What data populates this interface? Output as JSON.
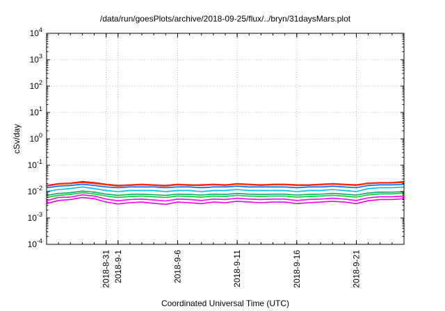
{
  "chart_data": {
    "type": "line",
    "title": "/data/run/goesPlots/archive/2018-09-25/flux/../bryn/31daysMars.plot",
    "xlabel": "Coordinated Universal Time (UTC)",
    "ylabel": "cSv/day",
    "yscale": "log",
    "ylim": [
      0.0001,
      10000
    ],
    "yticks": [
      {
        "value": 0.0001,
        "base": "10",
        "exp": "-4"
      },
      {
        "value": 0.001,
        "base": "10",
        "exp": "-3"
      },
      {
        "value": 0.01,
        "base": "10",
        "exp": "-2"
      },
      {
        "value": 0.1,
        "base": "10",
        "exp": "-1"
      },
      {
        "value": 1,
        "base": "10",
        "exp": "0"
      },
      {
        "value": 10,
        "base": "10",
        "exp": "1"
      },
      {
        "value": 100,
        "base": "10",
        "exp": "2"
      },
      {
        "value": 1000,
        "base": "10",
        "exp": "3"
      },
      {
        "value": 10000,
        "base": "10",
        "exp": "4"
      }
    ],
    "xlim": [
      "2018-08-26",
      "2018-09-25"
    ],
    "xticks": [
      {
        "date": "2018-08-31",
        "label": "2018-8-31"
      },
      {
        "date": "2018-09-01",
        "label": "2018-9-1"
      },
      {
        "date": "2018-09-06",
        "label": "2018-9-6"
      },
      {
        "date": "2018-09-11",
        "label": "2018-9-11"
      },
      {
        "date": "2018-09-16",
        "label": "2018-9-16"
      },
      {
        "date": "2018-09-21",
        "label": "2018-9-21"
      }
    ],
    "grid": true,
    "legend": "none",
    "x_dates": [
      "2018-08-26",
      "2018-08-27",
      "2018-08-28",
      "2018-08-29",
      "2018-08-30",
      "2018-08-31",
      "2018-09-01",
      "2018-09-02",
      "2018-09-03",
      "2018-09-04",
      "2018-09-05",
      "2018-09-06",
      "2018-09-07",
      "2018-09-08",
      "2018-09-09",
      "2018-09-10",
      "2018-09-11",
      "2018-09-12",
      "2018-09-13",
      "2018-09-14",
      "2018-09-15",
      "2018-09-16",
      "2018-09-17",
      "2018-09-18",
      "2018-09-19",
      "2018-09-20",
      "2018-09-21",
      "2018-09-22",
      "2018-09-23",
      "2018-09-24",
      "2018-09-25"
    ],
    "series": [
      {
        "color": "#ff0000",
        "values": [
          0.017,
          0.02,
          0.021,
          0.024,
          0.022,
          0.019,
          0.017,
          0.018,
          0.019,
          0.018,
          0.017,
          0.019,
          0.018,
          0.018,
          0.019,
          0.018,
          0.02,
          0.019,
          0.018,
          0.019,
          0.019,
          0.018,
          0.018,
          0.019,
          0.02,
          0.019,
          0.018,
          0.021,
          0.022,
          0.022,
          0.024
        ]
      },
      {
        "color": "#ff4400",
        "values": [
          0.016,
          0.019,
          0.02,
          0.022,
          0.02,
          0.018,
          0.016,
          0.017,
          0.018,
          0.017,
          0.016,
          0.018,
          0.017,
          0.017,
          0.018,
          0.017,
          0.019,
          0.018,
          0.017,
          0.018,
          0.018,
          0.017,
          0.017,
          0.018,
          0.019,
          0.018,
          0.017,
          0.02,
          0.021,
          0.021,
          0.022
        ]
      },
      {
        "color": "#0066ff",
        "values": [
          0.014,
          0.016,
          0.017,
          0.019,
          0.017,
          0.015,
          0.014,
          0.015,
          0.015,
          0.015,
          0.014,
          0.015,
          0.015,
          0.014,
          0.015,
          0.015,
          0.016,
          0.015,
          0.015,
          0.015,
          0.015,
          0.014,
          0.015,
          0.015,
          0.016,
          0.015,
          0.014,
          0.017,
          0.018,
          0.018,
          0.019
        ]
      },
      {
        "color": "#00bbee",
        "values": [
          0.01,
          0.012,
          0.013,
          0.015,
          0.013,
          0.011,
          0.01,
          0.011,
          0.011,
          0.011,
          0.01,
          0.011,
          0.011,
          0.01,
          0.011,
          0.011,
          0.012,
          0.011,
          0.011,
          0.011,
          0.011,
          0.01,
          0.011,
          0.011,
          0.012,
          0.011,
          0.01,
          0.013,
          0.014,
          0.014,
          0.015
        ]
      },
      {
        "color": "#00aa66",
        "values": [
          0.0072,
          0.0085,
          0.009,
          0.0105,
          0.0095,
          0.008,
          0.0072,
          0.0078,
          0.008,
          0.0076,
          0.0072,
          0.008,
          0.0078,
          0.0074,
          0.008,
          0.0078,
          0.0085,
          0.008,
          0.0078,
          0.008,
          0.008,
          0.0074,
          0.0078,
          0.008,
          0.0085,
          0.008,
          0.0074,
          0.0088,
          0.0095,
          0.0095,
          0.01
        ]
      },
      {
        "color": "#00cc33",
        "values": [
          0.006,
          0.0072,
          0.0078,
          0.009,
          0.0082,
          0.0068,
          0.006,
          0.0065,
          0.0068,
          0.0064,
          0.006,
          0.0068,
          0.0066,
          0.0062,
          0.0068,
          0.0066,
          0.0072,
          0.0068,
          0.0066,
          0.0068,
          0.0068,
          0.0062,
          0.0066,
          0.0068,
          0.0072,
          0.0068,
          0.0062,
          0.0075,
          0.0082,
          0.0082,
          0.0088
        ]
      },
      {
        "color": "#ff00ff",
        "values": [
          0.0045,
          0.006,
          0.0062,
          0.0075,
          0.0068,
          0.0052,
          0.0045,
          0.005,
          0.0052,
          0.0048,
          0.0044,
          0.0052,
          0.005,
          0.0046,
          0.0052,
          0.005,
          0.0056,
          0.0052,
          0.005,
          0.0052,
          0.0052,
          0.0046,
          0.005,
          0.0052,
          0.0056,
          0.0052,
          0.0046,
          0.0058,
          0.0064,
          0.0064,
          0.0068
        ]
      },
      {
        "color": "#ee00ee",
        "values": [
          0.0035,
          0.0046,
          0.005,
          0.006,
          0.0054,
          0.004,
          0.0034,
          0.0038,
          0.004,
          0.0036,
          0.0033,
          0.004,
          0.0038,
          0.0035,
          0.004,
          0.0038,
          0.0043,
          0.004,
          0.0038,
          0.004,
          0.004,
          0.0035,
          0.0038,
          0.004,
          0.0043,
          0.004,
          0.0035,
          0.0045,
          0.005,
          0.005,
          0.0054
        ]
      }
    ]
  }
}
